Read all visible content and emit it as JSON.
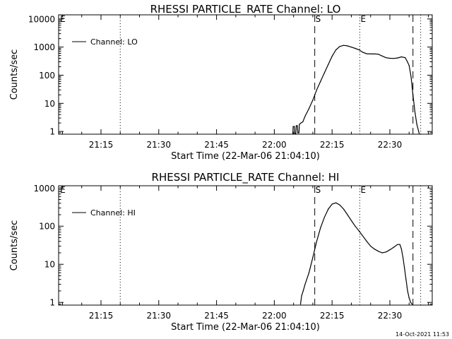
{
  "timestamp": "14-Oct-2021 11:53",
  "colors": {
    "background": "#ffffff",
    "foreground": "#000000"
  },
  "chart_data": [
    {
      "type": "line",
      "title": "RHESSI PARTICLE_RATE Channel: LO",
      "xlabel": "Start Time (22-Mar-06 21:04:10)",
      "ylabel": "Counts/sec",
      "yscale": "log",
      "ylim": [
        0.8,
        14000
      ],
      "xlim_minutes": [
        64,
        161
      ],
      "ytick_labels": [
        "1",
        "10",
        "100",
        "1000",
        "10000"
      ],
      "ytick_values": [
        1,
        10,
        100,
        1000,
        10000
      ],
      "xtick_labels": [
        "21:15",
        "21:30",
        "21:45",
        "22:00",
        "22:15",
        "22:30"
      ],
      "xtick_values": [
        75,
        90,
        105,
        120,
        135,
        150
      ],
      "legend": {
        "label": "Channel: LO",
        "position": "top-left"
      },
      "markers": [
        {
          "label": "E",
          "time": 64.2,
          "style": "none"
        },
        {
          "label": "",
          "time": 80,
          "style": "dotted"
        },
        {
          "label": "S",
          "time": 130.5,
          "style": "dashed"
        },
        {
          "label": "E",
          "time": 142.2,
          "style": "dotted"
        },
        {
          "label": "",
          "time": 156,
          "style": "dashed"
        },
        {
          "label": "",
          "time": 158,
          "style": "dotted"
        }
      ],
      "series": [
        {
          "x": [
            124.8,
            124.9,
            125.2,
            125.3,
            125.6,
            125.7,
            126.0,
            126.1,
            126.4,
            126.5,
            126.9,
            127.4,
            128,
            129,
            130,
            131,
            132,
            133,
            134,
            135,
            136,
            137,
            138,
            139,
            140,
            141,
            142,
            143,
            144,
            145,
            146,
            147,
            148,
            149,
            150,
            151,
            152,
            153,
            154,
            154.5,
            155,
            155.5,
            156,
            156.5,
            157,
            157.6
          ],
          "y": [
            0.85,
            1.5,
            1.5,
            0.85,
            0.85,
            1.6,
            1.6,
            0.9,
            0.9,
            1.8,
            2,
            2.2,
            3.5,
            6.5,
            13,
            30,
            60,
            120,
            240,
            470,
            800,
            1050,
            1150,
            1100,
            1000,
            900,
            800,
            650,
            580,
            570,
            570,
            560,
            480,
            420,
            400,
            395,
            410,
            450,
            420,
            310,
            220,
            90,
            20,
            5,
            1.8,
            0.85
          ]
        }
      ]
    },
    {
      "type": "line",
      "title": "RHESSI PARTICLE_RATE Channel: HI",
      "xlabel": "Start Time (22-Mar-06 21:04:10)",
      "ylabel": "Counts/sec",
      "yscale": "log",
      "ylim": [
        0.85,
        1150
      ],
      "xlim_minutes": [
        64,
        161
      ],
      "ytick_labels": [
        "1",
        "10",
        "100",
        "1000"
      ],
      "ytick_values": [
        1,
        10,
        100,
        1000
      ],
      "xtick_labels": [
        "21:15",
        "21:30",
        "21:45",
        "22:00",
        "22:15",
        "22:30"
      ],
      "xtick_values": [
        75,
        90,
        105,
        120,
        135,
        150
      ],
      "legend": {
        "label": "Channel: HI",
        "position": "top-left"
      },
      "markers": [
        {
          "label": "E",
          "time": 64.2,
          "style": "none"
        },
        {
          "label": "",
          "time": 80,
          "style": "dotted"
        },
        {
          "label": "S",
          "time": 130.5,
          "style": "dashed"
        },
        {
          "label": "E",
          "time": 142.2,
          "style": "dotted"
        },
        {
          "label": "",
          "time": 156,
          "style": "dashed"
        },
        {
          "label": "",
          "time": 158,
          "style": "dotted"
        }
      ],
      "series": [
        {
          "x": [
            126.8,
            127.1,
            127.5,
            128,
            129,
            130,
            131,
            132,
            133,
            134,
            135,
            136,
            137,
            138,
            139,
            140,
            141,
            142,
            143,
            144,
            145,
            146,
            147,
            148,
            149,
            150,
            151,
            152,
            152.6,
            153,
            153.4,
            153.8,
            154.2,
            154.6,
            155,
            155.4,
            155.8
          ],
          "y": [
            0.9,
            1.5,
            2,
            3,
            6,
            15,
            40,
            90,
            170,
            280,
            380,
            410,
            360,
            280,
            200,
            140,
            100,
            75,
            55,
            40,
            30,
            25,
            22,
            20,
            21,
            24,
            28,
            33,
            33,
            25,
            15,
            8,
            4,
            2,
            1.3,
            1,
            0.9
          ]
        }
      ]
    }
  ]
}
